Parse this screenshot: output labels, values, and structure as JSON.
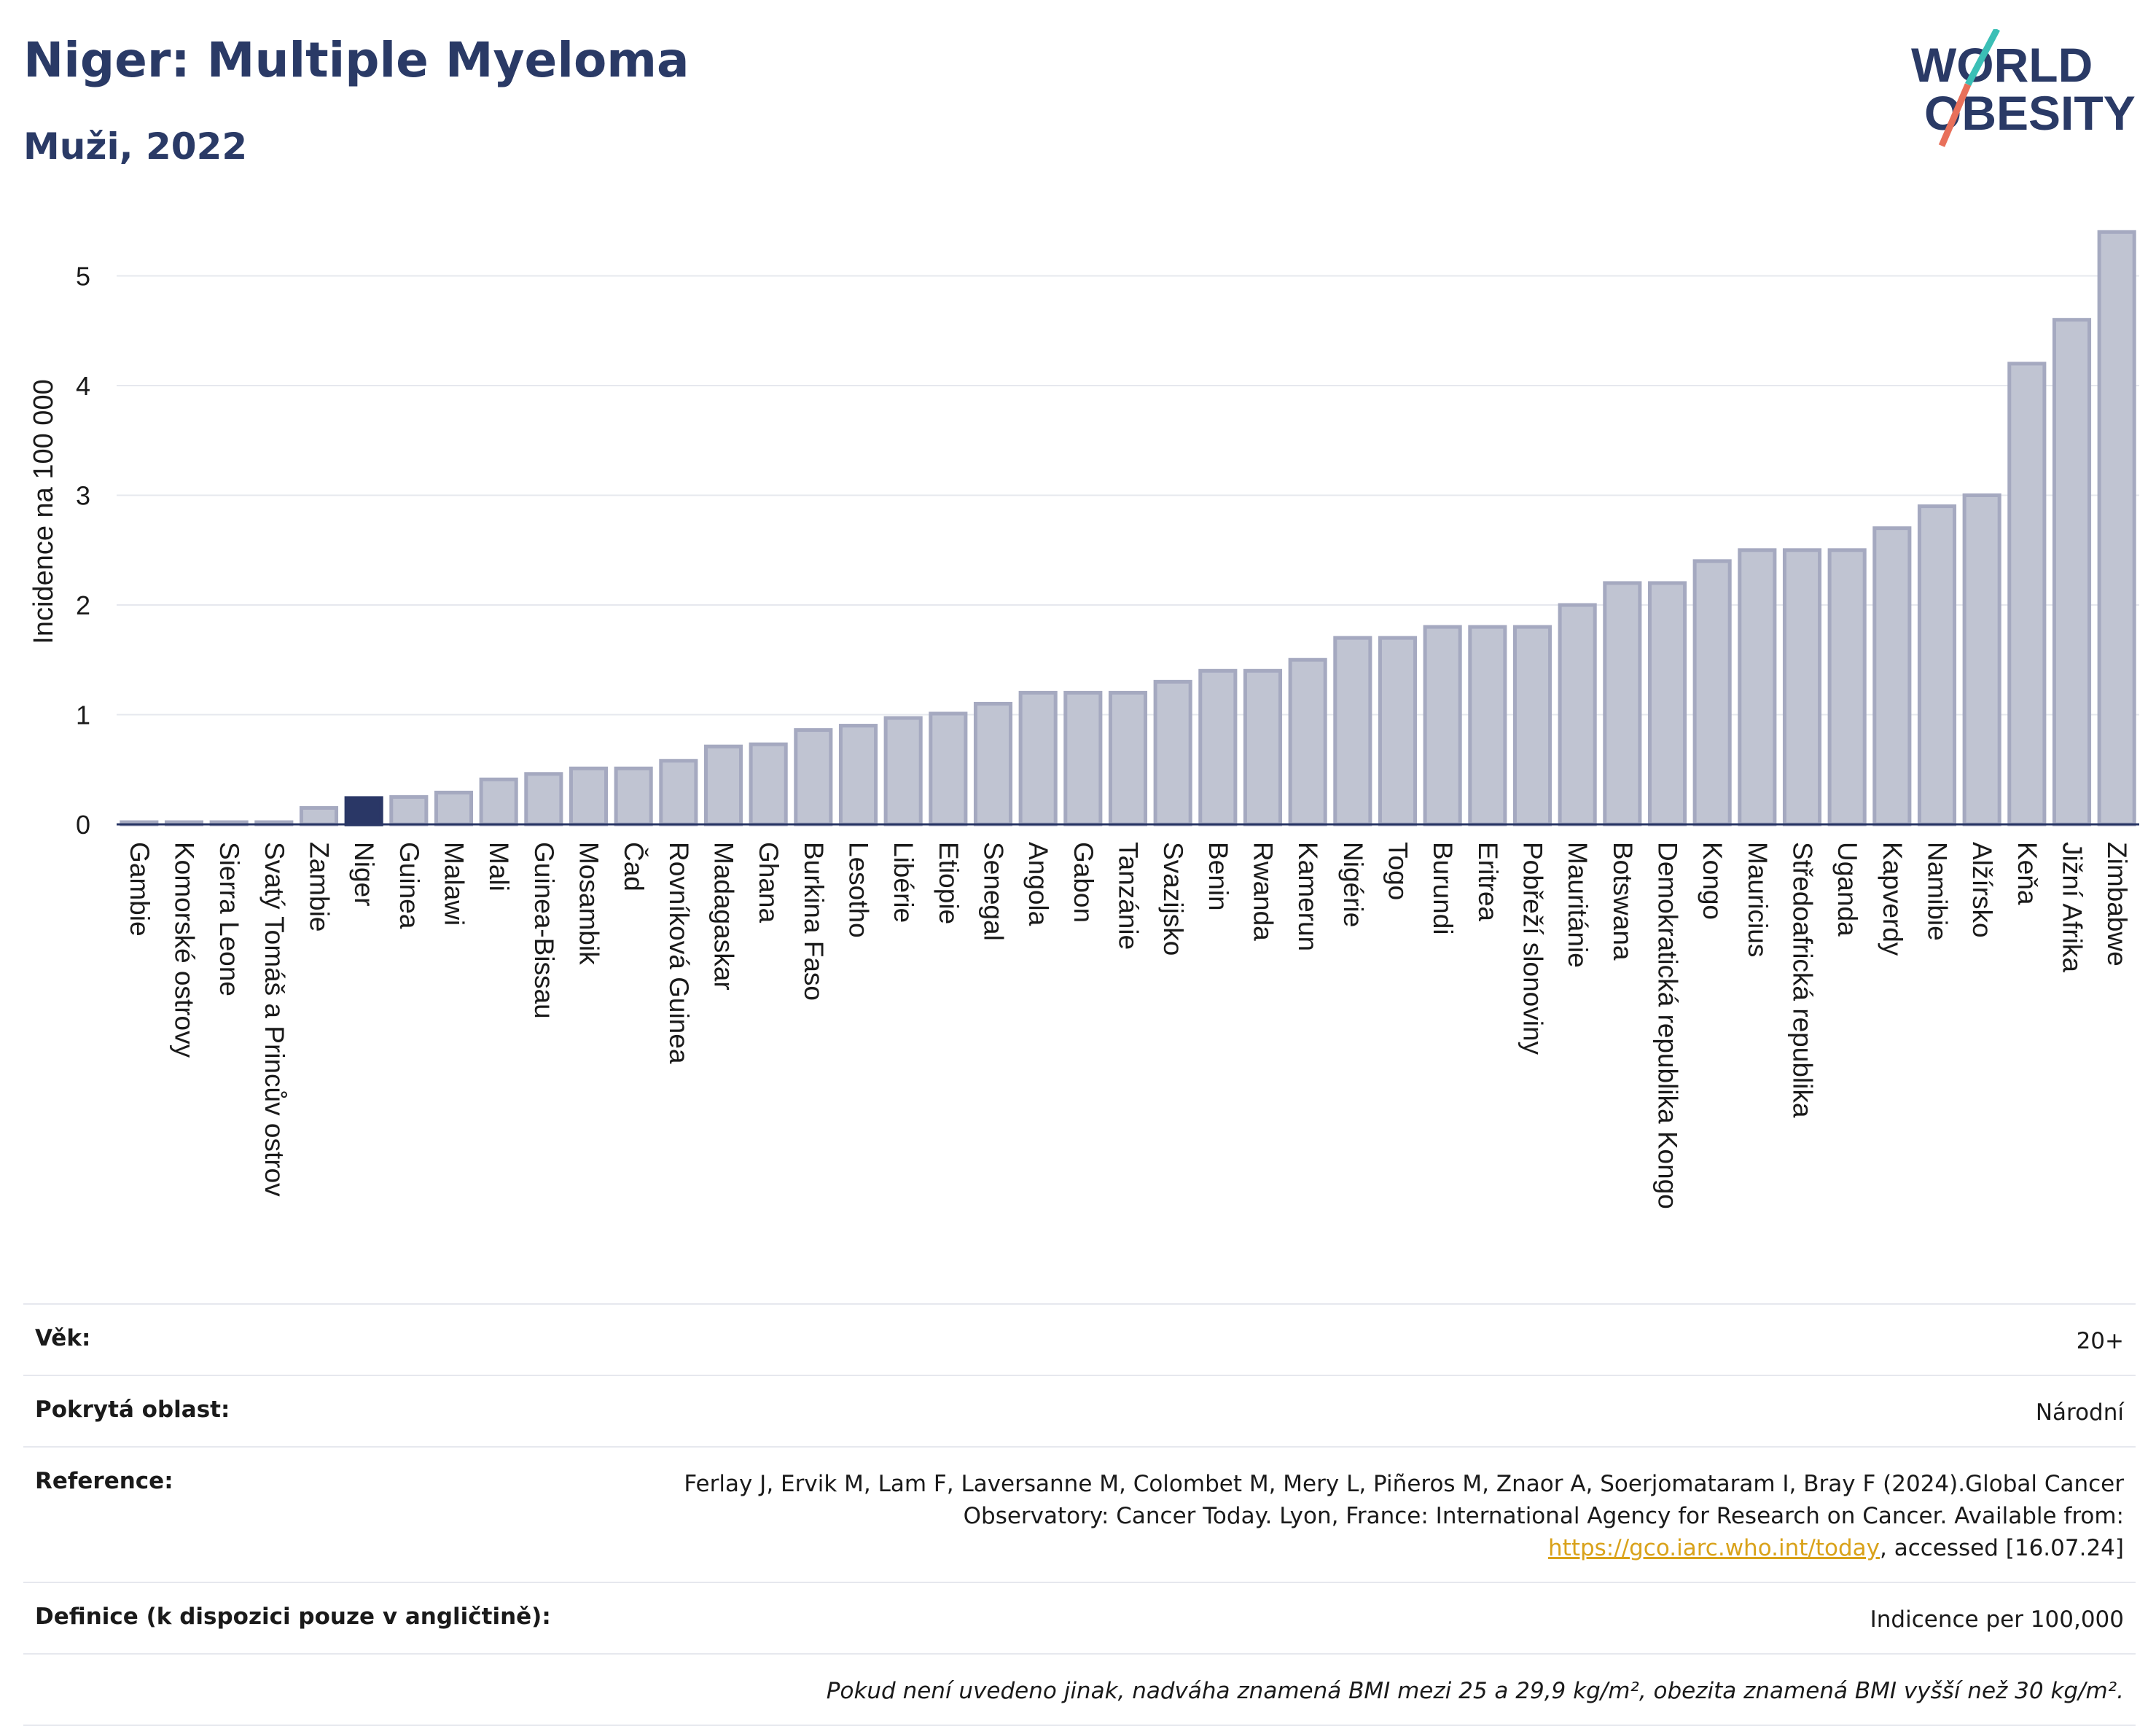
{
  "header": {
    "title": "Niger: Multiple Myeloma",
    "subtitle": "Muži, 2022"
  },
  "logo": {
    "line1": "WORLD",
    "line2": "OBESITY"
  },
  "colors": {
    "highlight": "#2a3766",
    "bar_fill": "#c0c4d2",
    "bar_stroke": "#a5a9c0",
    "grid": "#e6e8ee",
    "axis": "#2a3766",
    "logo_teal": "#3bbfb6",
    "logo_coral": "#e8705a"
  },
  "chart_data": {
    "type": "bar",
    "ylabel": "Incidence na 100 000",
    "ylim": [
      0,
      5.5
    ],
    "yticks": [
      0,
      1,
      2,
      3,
      4,
      5
    ],
    "grid": true,
    "highlight": "Niger",
    "categories": [
      "Gambie",
      "Komorské ostrovy",
      "Sierra Leone",
      "Svatý Tomáš a Princův ostrov",
      "Zambie",
      "Niger",
      "Guinea",
      "Malawi",
      "Mali",
      "Guinea-Bissau",
      "Mosambik",
      "Čad",
      "Rovníková Guinea",
      "Madagaskar",
      "Ghana",
      "Burkina Faso",
      "Lesotho",
      "Libérie",
      "Etiopie",
      "Senegal",
      "Angola",
      "Gabon",
      "Tanzánie",
      "Svazijsko",
      "Benin",
      "Rwanda",
      "Kamerun",
      "Nigérie",
      "Togo",
      "Burundi",
      "Eritrea",
      "Pobřeží slonoviny",
      "Mauritánie",
      "Botswana",
      "Demokratická republika Kongo",
      "Kongo",
      "Mauricius",
      "Středoafrická republika",
      "Uganda",
      "Kapverdy",
      "Namibie",
      "Alžírsko",
      "Keňa",
      "Jižní Afrika",
      "Zimbabwe"
    ],
    "values": [
      0.02,
      0.02,
      0.02,
      0.02,
      0.15,
      0.24,
      0.25,
      0.29,
      0.41,
      0.46,
      0.51,
      0.51,
      0.58,
      0.71,
      0.73,
      0.86,
      0.9,
      0.97,
      1.01,
      1.1,
      1.2,
      1.2,
      1.2,
      1.3,
      1.4,
      1.4,
      1.5,
      1.7,
      1.7,
      1.8,
      1.8,
      1.8,
      2.0,
      2.2,
      2.2,
      2.4,
      2.5,
      2.5,
      2.5,
      2.7,
      2.9,
      3.0,
      4.2,
      4.6,
      5.4
    ]
  },
  "info": {
    "rows": [
      {
        "label": "Věk:",
        "value": "20+"
      },
      {
        "label": "Pokrytá oblast:",
        "value": "Národní"
      },
      {
        "label": "Reference:",
        "value_pre": "Ferlay J, Ervik M, Lam F, Laversanne M, Colombet M, Mery L, Piñeros M, Znaor A, Soerjomataram I, Bray F (2024).Global Cancer Observatory: Cancer Today. Lyon, France: International Agency for Research on Cancer. Available from: ",
        "link": "https://gco.iarc.who.int/today",
        "value_post": ", accessed [16.07.24]"
      },
      {
        "label": "Definice (k dispozici pouze v angličtině):",
        "value": "Indicence per 100,000"
      }
    ],
    "note": "Pokud není uvedeno jinak, nadváha znamená BMI mezi 25 a 29,9 kg/m², obezita znamená BMI vyšší než 30 kg/m²."
  }
}
